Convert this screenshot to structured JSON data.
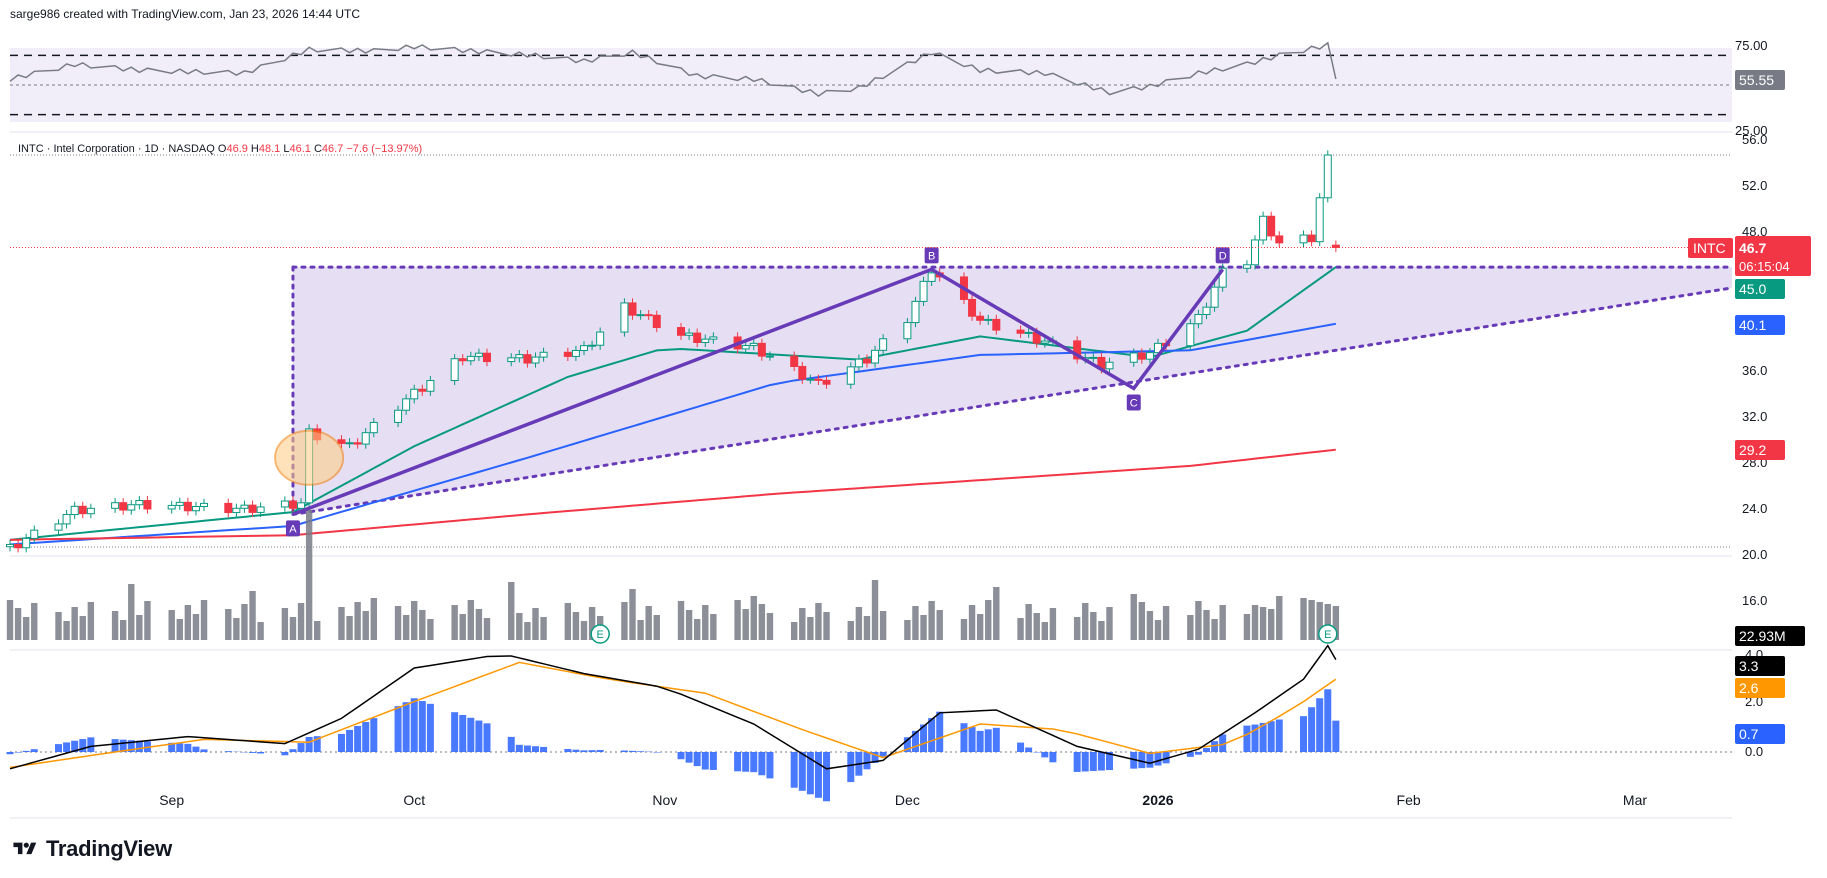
{
  "header": {
    "credit": "sarge986 created with TradingView.com, Jan 23, 2026 14:44 UTC"
  },
  "symbol_line": {
    "name": "INTC · Intel Corporation · 1D · NASDAQ",
    "o_label": "O",
    "o": "46.9",
    "h_label": "H",
    "h": "48.1",
    "l_label": "L",
    "l": "46.1",
    "c_label": "C",
    "c": "46.7",
    "change": "−7.6 (−13.97%)"
  },
  "brand": {
    "name": "TradingView",
    "logo_icon": "tradingview-logo-icon"
  },
  "colors": {
    "up": "#089981",
    "down": "#f23645",
    "ema_green": "#089981",
    "ma_blue": "#2962ff",
    "ma_red": "#f23645",
    "volume": "#787b86",
    "pattern": "#673ab7",
    "macd_line": "#000000",
    "signal": "#ff9800",
    "histogram": "#2962ff",
    "rsi": "#787b86",
    "circle": "#f57c00"
  },
  "chart_data": [
    {
      "type": "candlestick",
      "title": "INTC · Intel Corporation · 1D · NASDAQ",
      "ylim": [
        18,
        56.5
      ],
      "y_ticks": [
        "56.0",
        "52.0",
        "48.0",
        "36.0",
        "32.0",
        "28.0",
        "24.0",
        "20.0",
        "16.0"
      ],
      "x_ticks": [
        {
          "label": "Sep",
          "date": "2025-09-01"
        },
        {
          "label": "Oct",
          "date": "2025-10-01"
        },
        {
          "label": "Nov",
          "date": "2025-11-01"
        },
        {
          "label": "Dec",
          "date": "2025-12-01"
        },
        {
          "label": "2026",
          "date": "2026-01-01",
          "bold": true
        },
        {
          "label": "Feb",
          "date": "2026-02-01"
        },
        {
          "label": "Mar",
          "date": "2026-03-01"
        }
      ],
      "x_range": [
        "2025-08-12",
        "2026-03-13"
      ],
      "keyframes": [
        {
          "date": "2025-08-12",
          "close": 20.6
        },
        {
          "date": "2025-08-20",
          "close": 23.9
        },
        {
          "date": "2025-08-28",
          "close": 24.4
        },
        {
          "date": "2025-09-10",
          "close": 24.0
        },
        {
          "date": "2025-09-17",
          "close": 24.5
        },
        {
          "date": "2025-09-18",
          "close": 30.6
        },
        {
          "date": "2025-09-23",
          "close": 29.4
        },
        {
          "date": "2025-09-30",
          "close": 33.5
        },
        {
          "date": "2025-10-07",
          "close": 37.2
        },
        {
          "date": "2025-10-15",
          "close": 37.0
        },
        {
          "date": "2025-10-22",
          "close": 37.8
        },
        {
          "date": "2025-10-27",
          "close": 41.5
        },
        {
          "date": "2025-11-03",
          "close": 39.0
        },
        {
          "date": "2025-11-12",
          "close": 38.0
        },
        {
          "date": "2025-11-20",
          "close": 34.8
        },
        {
          "date": "2025-11-26",
          "close": 37.0
        },
        {
          "date": "2025-12-01",
          "close": 40.5
        },
        {
          "date": "2025-12-04",
          "close": 44.8
        },
        {
          "date": "2025-12-10",
          "close": 40.3
        },
        {
          "date": "2025-12-18",
          "close": 38.5
        },
        {
          "date": "2025-12-25",
          "close": 36.5
        },
        {
          "date": "2025-12-31",
          "close": 37.5
        },
        {
          "date": "2026-01-06",
          "close": 40.5
        },
        {
          "date": "2026-01-09",
          "close": 44.5
        },
        {
          "date": "2026-01-12",
          "close": 45.5
        },
        {
          "date": "2026-01-14",
          "close": 49.0
        },
        {
          "date": "2026-01-16",
          "close": 47.0
        },
        {
          "date": "2026-01-20",
          "close": 47.5
        },
        {
          "date": "2026-01-22",
          "close": 54.3
        },
        {
          "date": "2026-01-23",
          "close": 46.7
        }
      ],
      "last_bar": {
        "date": "2026-01-23",
        "open": 46.9,
        "high": 48.1,
        "low": 46.1,
        "close": 46.7
      },
      "moving_averages": [
        {
          "color": "#089981",
          "last": 45.0
        },
        {
          "color": "#2962ff",
          "last": 40.1
        },
        {
          "color": "#f23645",
          "last": 29.2
        }
      ],
      "price_labels": [
        {
          "text": "INTC",
          "kind": "ticker"
        },
        {
          "text": "46.7",
          "value": 46.7,
          "color": "#f23645"
        },
        {
          "text": "06:15:04",
          "kind": "countdown",
          "color": "#f23645"
        },
        {
          "text": "45.0",
          "value": 45.0,
          "color": "#089981"
        },
        {
          "text": "40.1",
          "value": 40.1,
          "color": "#2962ff"
        },
        {
          "text": "29.2",
          "value": 29.2,
          "color": "#f23645"
        }
      ],
      "pattern_points": [
        {
          "label": "A",
          "date": "2025-09-16",
          "price": 23.6
        },
        {
          "label": "B",
          "date": "2025-12-04",
          "price": 44.8
        },
        {
          "label": "C",
          "date": "2025-12-29",
          "price": 34.5
        },
        {
          "label": "D",
          "date": "2026-01-09",
          "price": 44.8
        }
      ],
      "triangle": {
        "resistance": 45.0,
        "support_start": {
          "date": "2025-09-16",
          "price": 23.6
        },
        "support_end": {
          "date": "2026-03-13",
          "price": 43.2
        }
      }
    },
    {
      "type": "bar",
      "title": "Volume",
      "last_label": "22.93M",
      "earnings_markers": [
        {
          "label": "E",
          "date": "2025-10-24"
        },
        {
          "label": "E",
          "date": "2026-01-22"
        }
      ]
    },
    {
      "type": "line",
      "title": "RSI",
      "ylim": [
        25,
        75
      ],
      "y_ticks": [
        "75.00",
        "25.00"
      ],
      "bands": [
        70,
        30
      ],
      "last_label": "55.55",
      "keyframes": [
        {
          "date": "2025-08-12",
          "value": 54
        },
        {
          "date": "2025-08-20",
          "value": 64
        },
        {
          "date": "2025-08-28",
          "value": 60
        },
        {
          "date": "2025-09-10",
          "value": 58
        },
        {
          "date": "2025-09-18",
          "value": 74
        },
        {
          "date": "2025-09-26",
          "value": 73
        },
        {
          "date": "2025-10-01",
          "value": 76
        },
        {
          "date": "2025-10-08",
          "value": 73
        },
        {
          "date": "2025-10-16",
          "value": 70
        },
        {
          "date": "2025-10-22",
          "value": 66
        },
        {
          "date": "2025-10-28",
          "value": 72
        },
        {
          "date": "2025-11-05",
          "value": 56
        },
        {
          "date": "2025-11-12",
          "value": 54
        },
        {
          "date": "2025-11-20",
          "value": 44
        },
        {
          "date": "2025-11-25",
          "value": 48
        },
        {
          "date": "2025-12-04",
          "value": 72
        },
        {
          "date": "2025-12-10",
          "value": 60
        },
        {
          "date": "2025-12-18",
          "value": 58
        },
        {
          "date": "2025-12-26",
          "value": 45
        },
        {
          "date": "2025-12-31",
          "value": 49
        },
        {
          "date": "2026-01-06",
          "value": 58
        },
        {
          "date": "2026-01-12",
          "value": 64
        },
        {
          "date": "2026-01-16",
          "value": 70
        },
        {
          "date": "2026-01-22",
          "value": 77
        },
        {
          "date": "2026-01-23",
          "value": 55.55
        }
      ]
    },
    {
      "type": "line",
      "title": "MACD",
      "ylim": [
        -0.9,
        4.2
      ],
      "y_ticks": [
        "4.0",
        "2.0",
        "0.0"
      ],
      "macd_last": "3.3",
      "signal_last": "2.6",
      "hist_last": "0.7",
      "macd_keyframes": [
        {
          "date": "2025-08-12",
          "value": -0.6
        },
        {
          "date": "2025-08-22",
          "value": 0.2
        },
        {
          "date": "2025-09-03",
          "value": 0.55
        },
        {
          "date": "2025-09-15",
          "value": 0.3
        },
        {
          "date": "2025-09-22",
          "value": 1.2
        },
        {
          "date": "2025-10-01",
          "value": 3.0
        },
        {
          "date": "2025-10-12",
          "value": 3.5
        },
        {
          "date": "2025-10-22",
          "value": 2.8
        },
        {
          "date": "2025-11-01",
          "value": 2.3
        },
        {
          "date": "2025-11-12",
          "value": 1.0
        },
        {
          "date": "2025-11-21",
          "value": -0.6
        },
        {
          "date": "2025-11-28",
          "value": -0.3
        },
        {
          "date": "2025-12-05",
          "value": 1.4
        },
        {
          "date": "2025-12-12",
          "value": 1.5
        },
        {
          "date": "2025-12-22",
          "value": 0.2
        },
        {
          "date": "2025-12-31",
          "value": -0.4
        },
        {
          "date": "2026-01-06",
          "value": 0.1
        },
        {
          "date": "2026-01-13",
          "value": 1.4
        },
        {
          "date": "2026-01-19",
          "value": 2.6
        },
        {
          "date": "2026-01-22",
          "value": 3.8
        },
        {
          "date": "2026-01-23",
          "value": 3.3
        }
      ],
      "signal_keyframes": [
        {
          "date": "2025-08-12",
          "value": -0.55
        },
        {
          "date": "2025-08-25",
          "value": 0.0
        },
        {
          "date": "2025-09-05",
          "value": 0.45
        },
        {
          "date": "2025-09-18",
          "value": 0.35
        },
        {
          "date": "2025-10-01",
          "value": 1.8
        },
        {
          "date": "2025-10-14",
          "value": 3.2
        },
        {
          "date": "2025-10-25",
          "value": 2.6
        },
        {
          "date": "2025-11-06",
          "value": 2.1
        },
        {
          "date": "2025-11-18",
          "value": 0.8
        },
        {
          "date": "2025-11-28",
          "value": -0.2
        },
        {
          "date": "2025-12-10",
          "value": 1.0
        },
        {
          "date": "2025-12-20",
          "value": 0.8
        },
        {
          "date": "2025-12-31",
          "value": -0.05
        },
        {
          "date": "2026-01-10",
          "value": 0.3
        },
        {
          "date": "2026-01-18",
          "value": 1.6
        },
        {
          "date": "2026-01-23",
          "value": 2.6
        }
      ]
    }
  ]
}
